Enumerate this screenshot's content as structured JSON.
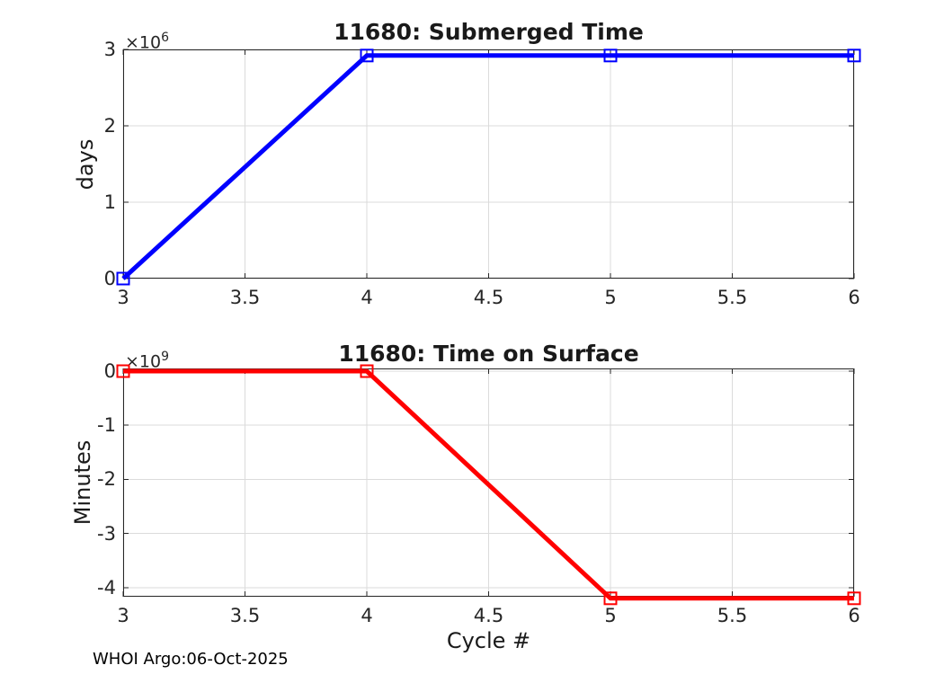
{
  "styles": {
    "axis_color": "#262626",
    "grid_color": "#DBDBDB",
    "background": "#FFFFFF",
    "series1_color": "#0000FF",
    "series2_color": "#FF0000"
  },
  "footer": {
    "text": "WHOI Argo:06-Oct-2025"
  },
  "chart_data": [
    {
      "type": "line",
      "title": "11680: Submerged Time",
      "xlabel": "",
      "ylabel": "days",
      "y_exponent": {
        "base": "×10",
        "exp": "6"
      },
      "series_color": "#0000FF",
      "marker": "square",
      "grid": true,
      "legend": null,
      "x": [
        3,
        4,
        5,
        6
      ],
      "values": [
        0,
        2920000,
        2920000,
        2920000
      ],
      "xlim": [
        3,
        6
      ],
      "ylim": [
        0,
        3000000
      ],
      "xticks": [
        3,
        3.5,
        4,
        4.5,
        5,
        5.5,
        6
      ],
      "xtick_labels": [
        "3",
        "3.5",
        "4",
        "4.5",
        "5",
        "5.5",
        "6"
      ],
      "yticks": [
        0,
        1000000,
        2000000,
        3000000
      ],
      "ytick_labels": [
        "0",
        "1",
        "2",
        "3"
      ]
    },
    {
      "type": "line",
      "title": "11680: Time on Surface",
      "xlabel": "Cycle #",
      "ylabel": "Minutes",
      "y_exponent": {
        "base": "×10",
        "exp": "9"
      },
      "series_color": "#FF0000",
      "marker": "square",
      "grid": true,
      "legend": null,
      "x": [
        3,
        4,
        5,
        6
      ],
      "values": [
        0,
        0,
        -4200000000,
        -4200000000
      ],
      "xlim": [
        3,
        6
      ],
      "ylim": [
        -4170000000,
        50000000
      ],
      "xticks": [
        3,
        3.5,
        4,
        4.5,
        5,
        5.5,
        6
      ],
      "xtick_labels": [
        "3",
        "3.5",
        "4",
        "4.5",
        "5",
        "5.5",
        "6"
      ],
      "yticks": [
        0,
        -1000000000,
        -2000000000,
        -3000000000,
        -4000000000
      ],
      "ytick_labels": [
        "0",
        "-1",
        "-2",
        "-3",
        "-4"
      ]
    }
  ]
}
